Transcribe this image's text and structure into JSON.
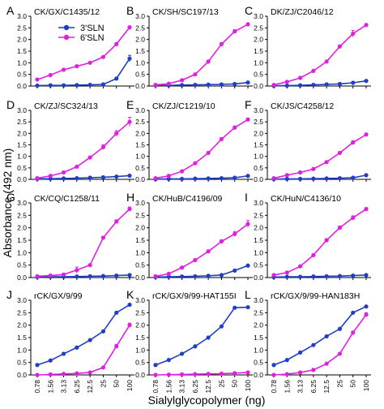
{
  "figure": {
    "ylabel": "Absorbance (492 nm)",
    "xlabel": "Sialylglycopolymer (ng)"
  },
  "legend": {
    "placement": "top-left of panel A",
    "items": [
      {
        "label": "3'SLN",
        "color": "#1f3fc4"
      },
      {
        "label": "6'SLN",
        "color": "#e020e0"
      }
    ]
  },
  "colors": {
    "series_3SLN": "#1f3fc4",
    "series_6SLN": "#e020e0",
    "axis": "#000000"
  },
  "chart_data": [
    {
      "panel": "A",
      "type": "line",
      "title": "CK/GX/C1435/12",
      "ylim": [
        0,
        3.0
      ],
      "yticks": [
        "0.0",
        "0.5",
        "1.0",
        "1.5",
        "2.0",
        "2.5",
        "3.0"
      ],
      "categories": [
        "0.78",
        "1.56",
        "3.13",
        "6.25",
        "12.5",
        "25",
        "50",
        "100"
      ],
      "series": [
        {
          "name": "3'SLN",
          "values": [
            0.02,
            0.03,
            0.03,
            0.04,
            0.05,
            0.07,
            0.32,
            1.18
          ],
          "error": [
            0,
            0,
            0,
            0,
            0,
            0,
            0.03,
            0.14
          ]
        },
        {
          "name": "6'SLN",
          "values": [
            0.28,
            0.47,
            0.7,
            0.85,
            1.0,
            1.25,
            1.8,
            2.52
          ],
          "error": [
            0,
            0.04,
            0.04,
            0.05,
            0.04,
            0.05,
            0.06,
            0.06
          ]
        }
      ]
    },
    {
      "panel": "B",
      "type": "line",
      "title": "CK/SH/SC197/13",
      "ylim": [
        0,
        3.0
      ],
      "yticks": [
        "0.0",
        "0.5",
        "1.0",
        "1.5",
        "2.0",
        "2.5",
        "3.0"
      ],
      "categories": [
        "0.78",
        "1.56",
        "3.13",
        "6.25",
        "12.5",
        "25",
        "50",
        "100"
      ],
      "series": [
        {
          "name": "3'SLN",
          "values": [
            0.03,
            0.03,
            0.04,
            0.05,
            0.06,
            0.07,
            0.09,
            0.15
          ],
          "error": [
            0,
            0,
            0,
            0,
            0,
            0,
            0,
            0.02
          ]
        },
        {
          "name": "6'SLN",
          "values": [
            0.05,
            0.1,
            0.25,
            0.5,
            1.05,
            1.8,
            2.35,
            2.65
          ],
          "error": [
            0,
            0.02,
            0.03,
            0.04,
            0.05,
            0.06,
            0.07,
            0.06
          ]
        }
      ]
    },
    {
      "panel": "C",
      "type": "line",
      "title": "DK/ZJ/C2046/12",
      "ylim": [
        0,
        3.0
      ],
      "yticks": [
        "0.0",
        "0.5",
        "1.0",
        "1.5",
        "2.0",
        "2.5",
        "3.0"
      ],
      "categories": [
        "0.78",
        "1.56",
        "3.13",
        "6.25",
        "12.5",
        "25",
        "50",
        "100"
      ],
      "series": [
        {
          "name": "3'SLN",
          "values": [
            0.01,
            0.02,
            0.03,
            0.05,
            0.07,
            0.09,
            0.14,
            0.22
          ],
          "error": [
            0,
            0,
            0,
            0,
            0,
            0,
            0,
            0.02
          ]
        },
        {
          "name": "6'SLN",
          "values": [
            0.05,
            0.18,
            0.35,
            0.65,
            1.05,
            1.7,
            2.25,
            2.62
          ],
          "error": [
            0,
            0.02,
            0.03,
            0.04,
            0.05,
            0.06,
            0.14,
            0.06
          ]
        }
      ]
    },
    {
      "panel": "D",
      "type": "line",
      "title": "CK/ZJ/SC324/13",
      "ylim": [
        0,
        3.0
      ],
      "yticks": [
        "0.0",
        "0.5",
        "1.0",
        "1.5",
        "2.0",
        "2.5",
        "3.0"
      ],
      "categories": [
        "0.78",
        "1.56",
        "3.13",
        "6.25",
        "12.5",
        "25",
        "50",
        "100"
      ],
      "series": [
        {
          "name": "3'SLN",
          "values": [
            0.02,
            0.03,
            0.04,
            0.05,
            0.07,
            0.09,
            0.12,
            0.16
          ],
          "error": [
            0,
            0,
            0,
            0,
            0,
            0,
            0,
            0.02
          ]
        },
        {
          "name": "6'SLN",
          "values": [
            0.05,
            0.15,
            0.3,
            0.55,
            0.95,
            1.4,
            2.0,
            2.5
          ],
          "error": [
            0,
            0.02,
            0.03,
            0.04,
            0.05,
            0.1,
            0.12,
            0.2
          ]
        }
      ]
    },
    {
      "panel": "E",
      "type": "line",
      "title": "CK/ZJ/C1219/10",
      "ylim": [
        0,
        3.0
      ],
      "yticks": [
        "0.0",
        "0.5",
        "1.0",
        "1.5",
        "2.0",
        "2.5",
        "3.0"
      ],
      "categories": [
        "0.78",
        "1.56",
        "3.13",
        "6.25",
        "12.5",
        "25",
        "50",
        "100"
      ],
      "series": [
        {
          "name": "3'SLN",
          "values": [
            0.01,
            0.02,
            0.02,
            0.03,
            0.04,
            0.05,
            0.07,
            0.15
          ],
          "error": [
            0,
            0,
            0,
            0,
            0,
            0,
            0,
            0.02
          ]
        },
        {
          "name": "6'SLN",
          "values": [
            0.05,
            0.15,
            0.35,
            0.7,
            1.15,
            1.75,
            2.25,
            2.6
          ],
          "error": [
            0,
            0.02,
            0.03,
            0.04,
            0.05,
            0.06,
            0.07,
            0.06
          ]
        }
      ]
    },
    {
      "panel": "F",
      "type": "line",
      "title": "CK/JS/C4258/12",
      "ylim": [
        0,
        3.0
      ],
      "yticks": [
        "0.0",
        "0.5",
        "1.0",
        "1.5",
        "2.0",
        "2.5",
        "3.0"
      ],
      "categories": [
        "0.78",
        "1.56",
        "3.13",
        "6.25",
        "12.5",
        "25",
        "50",
        "100"
      ],
      "series": [
        {
          "name": "3'SLN",
          "values": [
            0.01,
            0.02,
            0.02,
            0.03,
            0.04,
            0.05,
            0.07,
            0.18
          ],
          "error": [
            0,
            0,
            0,
            0,
            0,
            0,
            0,
            0.02
          ]
        },
        {
          "name": "6'SLN",
          "values": [
            0.05,
            0.18,
            0.3,
            0.45,
            0.75,
            1.15,
            1.6,
            1.95
          ],
          "error": [
            0,
            0.02,
            0.03,
            0.04,
            0.05,
            0.06,
            0.08,
            0.06
          ]
        }
      ]
    },
    {
      "panel": "G",
      "type": "line",
      "title": "CK/CQ/C1258/11",
      "ylim": [
        0,
        3.0
      ],
      "yticks": [
        "0.0",
        "0.5",
        "1.0",
        "1.5",
        "2.0",
        "2.5",
        "3.0"
      ],
      "categories": [
        "0.78",
        "1.56",
        "3.13",
        "6.25",
        "12.5",
        "25",
        "50",
        "100"
      ],
      "series": [
        {
          "name": "3'SLN",
          "values": [
            0.02,
            0.03,
            0.03,
            0.04,
            0.05,
            0.06,
            0.08,
            0.1
          ],
          "error": [
            0,
            0,
            0,
            0,
            0,
            0,
            0,
            0
          ]
        },
        {
          "name": "6'SLN",
          "values": [
            0.05,
            0.08,
            0.12,
            0.3,
            0.5,
            1.6,
            2.25,
            2.75
          ],
          "error": [
            0,
            0.02,
            0.03,
            0.12,
            0.04,
            0.06,
            0.07,
            0.08
          ]
        }
      ]
    },
    {
      "panel": "H",
      "type": "line",
      "title": "CK/HuB/C4196/09",
      "ylim": [
        0,
        3.0
      ],
      "yticks": [
        "0.0",
        "0.5",
        "1.0",
        "1.5",
        "2.0",
        "2.5",
        "3.0"
      ],
      "categories": [
        "0.78",
        "1.56",
        "3.13",
        "6.25",
        "12.5",
        "25",
        "50",
        "100"
      ],
      "series": [
        {
          "name": "3'SLN",
          "values": [
            0.02,
            0.03,
            0.04,
            0.05,
            0.07,
            0.1,
            0.28,
            0.48
          ],
          "error": [
            0,
            0,
            0,
            0,
            0,
            0,
            0.05,
            0.04
          ]
        },
        {
          "name": "6'SLN",
          "values": [
            0.05,
            0.15,
            0.4,
            0.7,
            1.05,
            1.45,
            1.75,
            2.15
          ],
          "error": [
            0,
            0.02,
            0.03,
            0.04,
            0.06,
            0.07,
            0.1,
            0.14
          ]
        }
      ]
    },
    {
      "panel": "I",
      "type": "line",
      "title": "CK/HuN/C4136/10",
      "ylim": [
        0,
        3.0
      ],
      "yticks": [
        "0.0",
        "0.5",
        "1.0",
        "1.5",
        "2.0",
        "2.5",
        "3.0"
      ],
      "categories": [
        "0.78",
        "1.56",
        "3.13",
        "6.25",
        "12.5",
        "25",
        "50",
        "100"
      ],
      "series": [
        {
          "name": "3'SLN",
          "values": [
            0.02,
            0.03,
            0.03,
            0.04,
            0.05,
            0.06,
            0.08,
            0.1
          ],
          "error": [
            0,
            0,
            0,
            0,
            0,
            0,
            0,
            0
          ]
        },
        {
          "name": "6'SLN",
          "values": [
            0.1,
            0.2,
            0.45,
            0.9,
            1.5,
            2.0,
            2.4,
            2.75
          ],
          "error": [
            0,
            0.02,
            0.03,
            0.05,
            0.06,
            0.07,
            0.08,
            0.06
          ]
        }
      ]
    },
    {
      "panel": "J",
      "type": "line",
      "title": "rCK/GX/9/99",
      "ylim": [
        0,
        3.0
      ],
      "yticks": [
        "0.0",
        "0.5",
        "1.0",
        "1.5",
        "2.0",
        "2.5",
        "3.0"
      ],
      "categories": [
        "0.78",
        "1.56",
        "3.13",
        "6.25",
        "12.5",
        "25",
        "50",
        "100"
      ],
      "series": [
        {
          "name": "3'SLN",
          "values": [
            0.4,
            0.58,
            0.85,
            1.1,
            1.4,
            1.75,
            2.5,
            2.82
          ],
          "error": [
            0,
            0,
            0,
            0,
            0,
            0,
            0,
            0
          ]
        },
        {
          "name": "6'SLN",
          "values": [
            0.0,
            0.02,
            0.04,
            0.06,
            0.1,
            0.3,
            1.15,
            2.0
          ],
          "error": [
            0,
            0,
            0,
            0,
            0,
            0,
            0.08,
            0.08
          ]
        }
      ]
    },
    {
      "panel": "K",
      "type": "line",
      "title": "rCK/GX/9/99-HAT155I",
      "ylim": [
        0,
        3.0
      ],
      "yticks": [
        "0.0",
        "0.5",
        "1.0",
        "1.5",
        "2.0",
        "2.5",
        "3.0"
      ],
      "categories": [
        "0.78",
        "1.56",
        "3.13",
        "6.25",
        "12.5",
        "25",
        "50",
        "100"
      ],
      "series": [
        {
          "name": "3'SLN",
          "values": [
            0.4,
            0.6,
            0.85,
            1.15,
            1.5,
            1.95,
            2.7,
            2.72
          ],
          "error": [
            0,
            0,
            0,
            0,
            0,
            0,
            0,
            0
          ]
        },
        {
          "name": "6'SLN",
          "values": [
            0.0,
            0.01,
            0.02,
            0.03,
            0.04,
            0.05,
            0.07,
            0.1
          ],
          "error": [
            0,
            0,
            0,
            0,
            0,
            0,
            0,
            0
          ]
        }
      ]
    },
    {
      "panel": "L",
      "type": "line",
      "title": "rCK/GX/9/99-HAN183H",
      "ylim": [
        0,
        3.0
      ],
      "yticks": [
        "0.0",
        "0.5",
        "1.0",
        "1.5",
        "2.0",
        "2.5",
        "3.0"
      ],
      "categories": [
        "0.78",
        "1.56",
        "3.13",
        "6.25",
        "12.5",
        "25",
        "50",
        "100"
      ],
      "series": [
        {
          "name": "3'SLN",
          "values": [
            0.4,
            0.6,
            0.9,
            1.2,
            1.55,
            1.85,
            2.5,
            2.75
          ],
          "error": [
            0,
            0,
            0,
            0,
            0,
            0,
            0,
            0
          ]
        },
        {
          "name": "6'SLN",
          "values": [
            0.0,
            0.03,
            0.1,
            0.2,
            0.45,
            0.85,
            1.7,
            2.42
          ],
          "error": [
            0,
            0,
            0,
            0,
            0,
            0,
            0.06,
            0.08
          ]
        }
      ]
    }
  ]
}
